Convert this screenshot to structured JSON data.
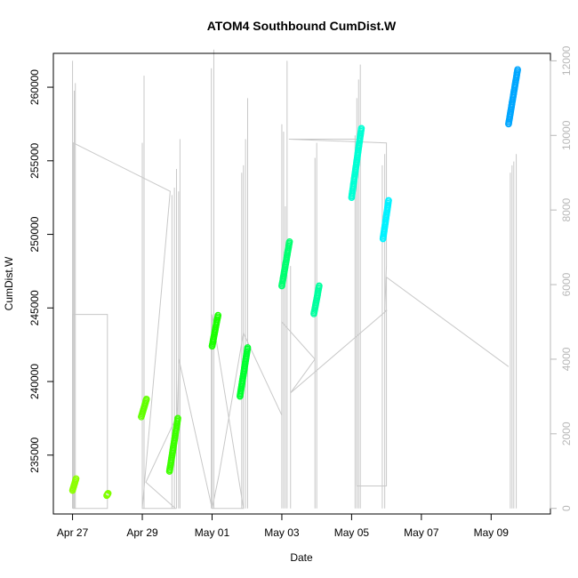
{
  "chart_data": {
    "type": "scatter",
    "title": "ATOM4 Southbound CumDist.W",
    "xlabel": "Date",
    "ylabel": "CumDist.W",
    "x_ticks": [
      "Apr 27",
      "Apr 29",
      "May 01",
      "May 03",
      "May 05",
      "May 07",
      "May 09"
    ],
    "x_tick_days": [
      0,
      2,
      4,
      6,
      8,
      10,
      12
    ],
    "xlim_days": [
      -0.55,
      13.7
    ],
    "ylim": [
      231000,
      262300
    ],
    "y_ticks": [
      235000,
      240000,
      245000,
      250000,
      255000,
      260000
    ],
    "y_tick_labels": [
      "235000",
      "240000",
      "245000",
      "250000",
      "255000",
      "260000"
    ],
    "right_axis": {
      "ylim": [
        -150,
        12200
      ],
      "ticks": [
        0,
        2000,
        4000,
        6000,
        8000,
        10000,
        12000
      ],
      "labels": [
        "0",
        "2000",
        "4000",
        "6000",
        "8000",
        "10000",
        "12000"
      ],
      "color": "#b8b8b8"
    },
    "grid": false,
    "series": [
      {
        "color": "#8cff00",
        "x": [
          0.0,
          0.1
        ],
        "y": [
          232600,
          233400
        ]
      },
      {
        "color": "#80ff00",
        "x": [
          0.98,
          1.02
        ],
        "y": [
          232250,
          232400
        ]
      },
      {
        "color": "#62ff00",
        "x": [
          1.97,
          2.12
        ],
        "y": [
          237600,
          238800
        ]
      },
      {
        "color": "#3dff00",
        "x": [
          2.78,
          3.02
        ],
        "y": [
          233900,
          237500
        ]
      },
      {
        "color": "#1aff00",
        "x": [
          4.0,
          4.17
        ],
        "y": [
          242400,
          244500
        ]
      },
      {
        "color": "#00ff2e",
        "x": [
          4.8,
          5.02
        ],
        "y": [
          239000,
          242300
        ]
      },
      {
        "color": "#00ff70",
        "x": [
          6.0,
          6.22
        ],
        "y": [
          246500,
          249500
        ]
      },
      {
        "color": "#00ff9e",
        "x": [
          6.92,
          7.07
        ],
        "y": [
          244600,
          246500
        ]
      },
      {
        "color": "#00ffd4",
        "x": [
          8.0,
          8.28
        ],
        "y": [
          252500,
          257200
        ]
      },
      {
        "color": "#00f2ff",
        "x": [
          8.9,
          9.06
        ],
        "y": [
          249700,
          252300
        ]
      },
      {
        "color": "#00a6ff",
        "x": [
          12.5,
          12.76
        ],
        "y": [
          257500,
          261200
        ]
      }
    ],
    "secondary_series": {
      "name": "",
      "color": "#c8c8c8",
      "spikes": [
        {
          "x": 0.0,
          "y": 12000
        },
        {
          "x": 0.05,
          "y": 11200
        },
        {
          "x": 0.08,
          "y": 11400
        },
        {
          "x": 2.0,
          "y": 9800
        },
        {
          "x": 2.05,
          "y": 11600
        },
        {
          "x": 2.85,
          "y": 8400
        },
        {
          "x": 2.92,
          "y": 8600
        },
        {
          "x": 2.98,
          "y": 9100
        },
        {
          "x": 3.04,
          "y": 8500
        },
        {
          "x": 3.08,
          "y": 9900
        },
        {
          "x": 3.98,
          "y": 11800
        },
        {
          "x": 4.05,
          "y": 12300
        },
        {
          "x": 4.85,
          "y": 9000
        },
        {
          "x": 4.9,
          "y": 9200
        },
        {
          "x": 4.96,
          "y": 9900
        },
        {
          "x": 5.02,
          "y": 11000
        },
        {
          "x": 6.0,
          "y": 10300
        },
        {
          "x": 6.05,
          "y": 10100
        },
        {
          "x": 6.1,
          "y": 8100
        },
        {
          "x": 6.15,
          "y": 12000
        },
        {
          "x": 6.25,
          "y": 6500
        },
        {
          "x": 6.95,
          "y": 9400
        },
        {
          "x": 7.0,
          "y": 9800
        },
        {
          "x": 8.1,
          "y": 10000
        },
        {
          "x": 8.15,
          "y": 11000
        },
        {
          "x": 8.2,
          "y": 11500
        },
        {
          "x": 8.25,
          "y": 11900
        },
        {
          "x": 8.88,
          "y": 9200
        },
        {
          "x": 8.95,
          "y": 9500
        },
        {
          "x": 12.55,
          "y": 9000
        },
        {
          "x": 12.6,
          "y": 9200
        },
        {
          "x": 12.65,
          "y": 9300
        },
        {
          "x": 12.72,
          "y": 9500
        }
      ],
      "path_x": [
        0.0,
        0.0,
        0.02,
        1.0,
        1.0,
        0.02,
        0.02,
        2.8,
        2.8,
        2.0,
        2.0,
        2.95,
        2.95,
        2.1,
        3.0,
        3.05,
        4.0,
        4.0,
        4.9,
        4.0,
        4.2,
        4.9,
        6.0,
        6.0,
        6.95,
        6.25,
        9.0,
        8.95,
        9.0,
        9.0,
        6.2,
        8.15,
        8.15,
        9.0,
        9.0,
        12.5
      ],
      "path_y": [
        0,
        5200,
        5200,
        5200,
        0,
        0,
        9800,
        8500,
        8500,
        0,
        0,
        0,
        0,
        700,
        2500,
        4000,
        0,
        5200,
        0,
        0,
        900,
        4700,
        2500,
        5000,
        4000,
        3100,
        5300,
        5300,
        6500,
        9800,
        9900,
        9900,
        600,
        600,
        6200,
        3800
      ]
    }
  }
}
